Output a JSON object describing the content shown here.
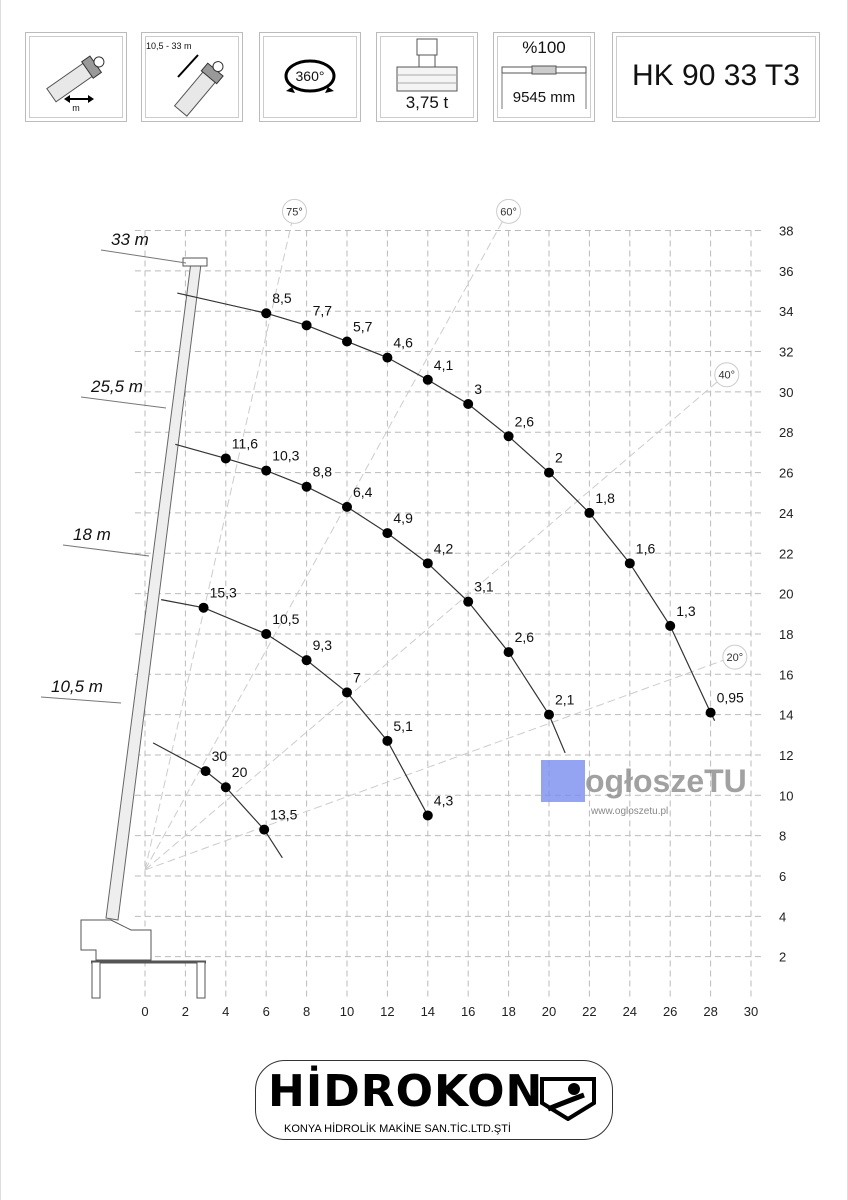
{
  "header": {
    "boxes": [
      {
        "icon": "boom-extension-icon",
        "label": "m"
      },
      {
        "icon": "boom-length-icon",
        "label": "10,5 - 33 m"
      },
      {
        "icon": "rotation-icon",
        "label": "360°"
      },
      {
        "icon": "crane-weight-icon",
        "label": "3,75 t"
      },
      {
        "icon": "outrigger-icon",
        "label_top": "%100",
        "label": "9545 mm"
      }
    ],
    "title": "HK 90 33 T3"
  },
  "watermark": {
    "brand": "ogłoszeTU",
    "url": "www.ogloszetu.pl"
  },
  "footer": {
    "brand": "HİDROKON",
    "company": "KONYA HİDROLİK MAKİNE SAN.TİC.LTD.ŞTİ"
  },
  "chart_data": {
    "type": "scatter",
    "title": "",
    "xlabel": "",
    "ylabel": "",
    "xlim": [
      0,
      30
    ],
    "ylim": [
      0,
      38
    ],
    "x_ticks": [
      "0",
      "2",
      "4",
      "6",
      "8",
      "10",
      "12",
      "14",
      "16",
      "18",
      "20",
      "22",
      "24",
      "26",
      "28",
      "30"
    ],
    "y_ticks": [
      "2",
      "4",
      "6",
      "8",
      "10",
      "12",
      "14",
      "16",
      "18",
      "20",
      "22",
      "24",
      "26",
      "28",
      "30",
      "32",
      "34",
      "36",
      "38"
    ],
    "grid": true,
    "angle_lines": [
      "75°",
      "60°",
      "40°",
      "20°"
    ],
    "series": [
      {
        "name": "33 m",
        "points": [
          {
            "x": 6,
            "y": 33.9,
            "load": "8,5"
          },
          {
            "x": 8,
            "y": 33.3,
            "load": "7,7"
          },
          {
            "x": 10,
            "y": 32.5,
            "load": "5,7"
          },
          {
            "x": 12,
            "y": 31.7,
            "load": "4,6"
          },
          {
            "x": 14,
            "y": 30.6,
            "load": "4,1"
          },
          {
            "x": 16,
            "y": 29.4,
            "load": "3"
          },
          {
            "x": 18,
            "y": 27.8,
            "load": "2,6"
          },
          {
            "x": 20,
            "y": 26.0,
            "load": "2"
          },
          {
            "x": 22,
            "y": 24.0,
            "load": "1,8"
          },
          {
            "x": 24,
            "y": 21.5,
            "load": "1,6"
          },
          {
            "x": 26,
            "y": 18.4,
            "load": "1,3"
          },
          {
            "x": 28,
            "y": 14.1,
            "load": "0,95"
          }
        ]
      },
      {
        "name": "25,5 m",
        "points": [
          {
            "x": 4,
            "y": 26.7,
            "load": "11,6"
          },
          {
            "x": 6,
            "y": 26.1,
            "load": "10,3"
          },
          {
            "x": 8,
            "y": 25.3,
            "load": "8,8"
          },
          {
            "x": 10,
            "y": 24.3,
            "load": "6,4"
          },
          {
            "x": 12,
            "y": 23.0,
            "load": "4,9"
          },
          {
            "x": 14,
            "y": 21.5,
            "load": "4,2"
          },
          {
            "x": 16,
            "y": 19.6,
            "load": "3,1"
          },
          {
            "x": 18,
            "y": 17.1,
            "load": "2,6"
          },
          {
            "x": 20,
            "y": 14.0,
            "load": "2,1"
          }
        ]
      },
      {
        "name": "18 m",
        "points": [
          {
            "x": 2.9,
            "y": 19.3,
            "load": "15,3"
          },
          {
            "x": 6,
            "y": 18.0,
            "load": "10,5"
          },
          {
            "x": 8,
            "y": 16.7,
            "load": "9,3"
          },
          {
            "x": 10,
            "y": 15.1,
            "load": "7"
          },
          {
            "x": 12,
            "y": 12.7,
            "load": "5,1"
          },
          {
            "x": 14,
            "y": 9.0,
            "load": "4,3"
          }
        ]
      },
      {
        "name": "10,5 m",
        "points": [
          {
            "x": 3,
            "y": 11.2,
            "load": "30"
          },
          {
            "x": 4,
            "y": 10.4,
            "load": "20"
          },
          {
            "x": 5.9,
            "y": 8.3,
            "load": "13,5"
          }
        ]
      }
    ]
  }
}
